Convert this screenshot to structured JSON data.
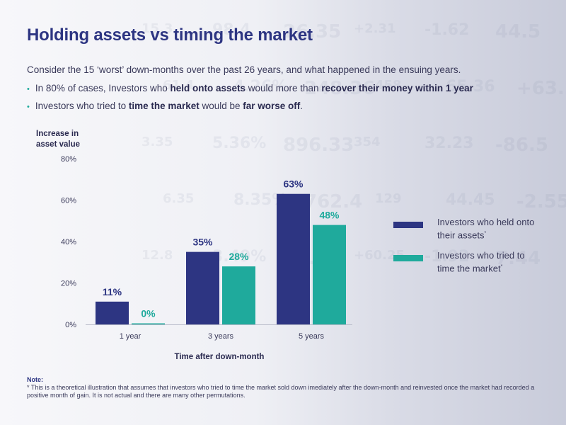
{
  "title": "Holding assets vs timing the market",
  "intro": "Consider the 15 ‘worst’ down-months over the past 26 years, and what happened in the ensuing years.",
  "bullets": [
    {
      "segments": [
        {
          "text": "In 80% of cases, Investors who ",
          "bold": false
        },
        {
          "text": "held onto assets",
          "bold": true
        },
        {
          "text": " would more than ",
          "bold": false
        },
        {
          "text": "recover their money within 1 year",
          "bold": true
        }
      ]
    },
    {
      "segments": [
        {
          "text": "Investors who tried to ",
          "bold": false
        },
        {
          "text": "time the market",
          "bold": true
        },
        {
          "text": " would be ",
          "bold": false
        },
        {
          "text": "far worse off",
          "bold": true
        },
        {
          "text": ".",
          "bold": false
        }
      ]
    }
  ],
  "colors": {
    "navy": "#2d3582",
    "teal": "#1faa9c",
    "axis_text": "#3a3a5a",
    "title": "#2d3582"
  },
  "chart_data": {
    "type": "bar",
    "ylabel": "Increase in asset value",
    "xlabel": "Time after down-month",
    "ylim": [
      0,
      80
    ],
    "yticks": [
      0,
      20,
      40,
      60,
      80
    ],
    "ytick_labels": [
      "0%",
      "20%",
      "40%",
      "60%",
      "80%"
    ],
    "categories": [
      "1 year",
      "3 years",
      "5 years"
    ],
    "series": [
      {
        "name": "Investors who held onto their assets",
        "note_mark": "*",
        "color": "#2d3582",
        "values": [
          11,
          35,
          63
        ],
        "labels": [
          "11%",
          "35%",
          "63%"
        ]
      },
      {
        "name": "Investors who tried to time the market",
        "note_mark": "*",
        "color": "#1faa9c",
        "values": [
          0,
          28,
          48
        ],
        "labels": [
          "0%",
          "28%",
          "48%"
        ]
      }
    ],
    "legend_position": "right"
  },
  "legend": [
    {
      "line1": "Investors who held onto",
      "line2": "their assets",
      "mark": "*"
    },
    {
      "line1": "Investors who tried to",
      "line2": "time the market",
      "mark": "*"
    }
  ],
  "note": {
    "heading": "Note:",
    "text": "* This is a theoretical illustration that assumes that investors who tried to time the market sold down imediately after the down-month and reinvested once the market had recorded a positive month of gain.  It is not actual and there are many other permutations."
  }
}
